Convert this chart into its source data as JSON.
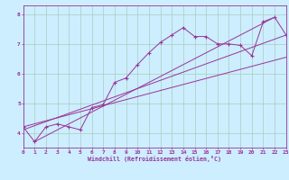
{
  "xlabel": "Windchill (Refroidissement éolien,°C)",
  "background_color": "#cceeff",
  "grid_color": "#aaccbb",
  "line_color": "#993399",
  "xlim": [
    0,
    23
  ],
  "ylim": [
    3.5,
    8.3
  ],
  "xticks": [
    0,
    1,
    2,
    3,
    4,
    5,
    6,
    7,
    8,
    9,
    10,
    11,
    12,
    13,
    14,
    15,
    16,
    17,
    18,
    19,
    20,
    21,
    22,
    23
  ],
  "yticks": [
    4,
    5,
    6,
    7,
    8
  ],
  "series": [
    [
      0,
      4.2
    ],
    [
      1,
      3.7
    ],
    [
      2,
      4.2
    ],
    [
      3,
      4.3
    ],
    [
      4,
      4.2
    ],
    [
      5,
      4.1
    ],
    [
      6,
      4.85
    ],
    [
      7,
      4.95
    ],
    [
      8,
      5.7
    ],
    [
      9,
      5.85
    ],
    [
      10,
      6.3
    ],
    [
      11,
      6.7
    ],
    [
      12,
      7.05
    ],
    [
      13,
      7.3
    ],
    [
      14,
      7.55
    ],
    [
      15,
      7.25
    ],
    [
      16,
      7.25
    ],
    [
      17,
      7.0
    ],
    [
      18,
      7.0
    ],
    [
      19,
      6.95
    ],
    [
      20,
      6.6
    ],
    [
      21,
      7.75
    ],
    [
      22,
      7.9
    ],
    [
      23,
      7.3
    ]
  ],
  "linear_series": [
    [
      0,
      4.1
    ],
    [
      23,
      7.3
    ]
  ],
  "linear_series2": [
    [
      0,
      4.2
    ],
    [
      23,
      6.55
    ]
  ],
  "linear_series3": [
    [
      1,
      3.7
    ],
    [
      22,
      7.9
    ]
  ]
}
